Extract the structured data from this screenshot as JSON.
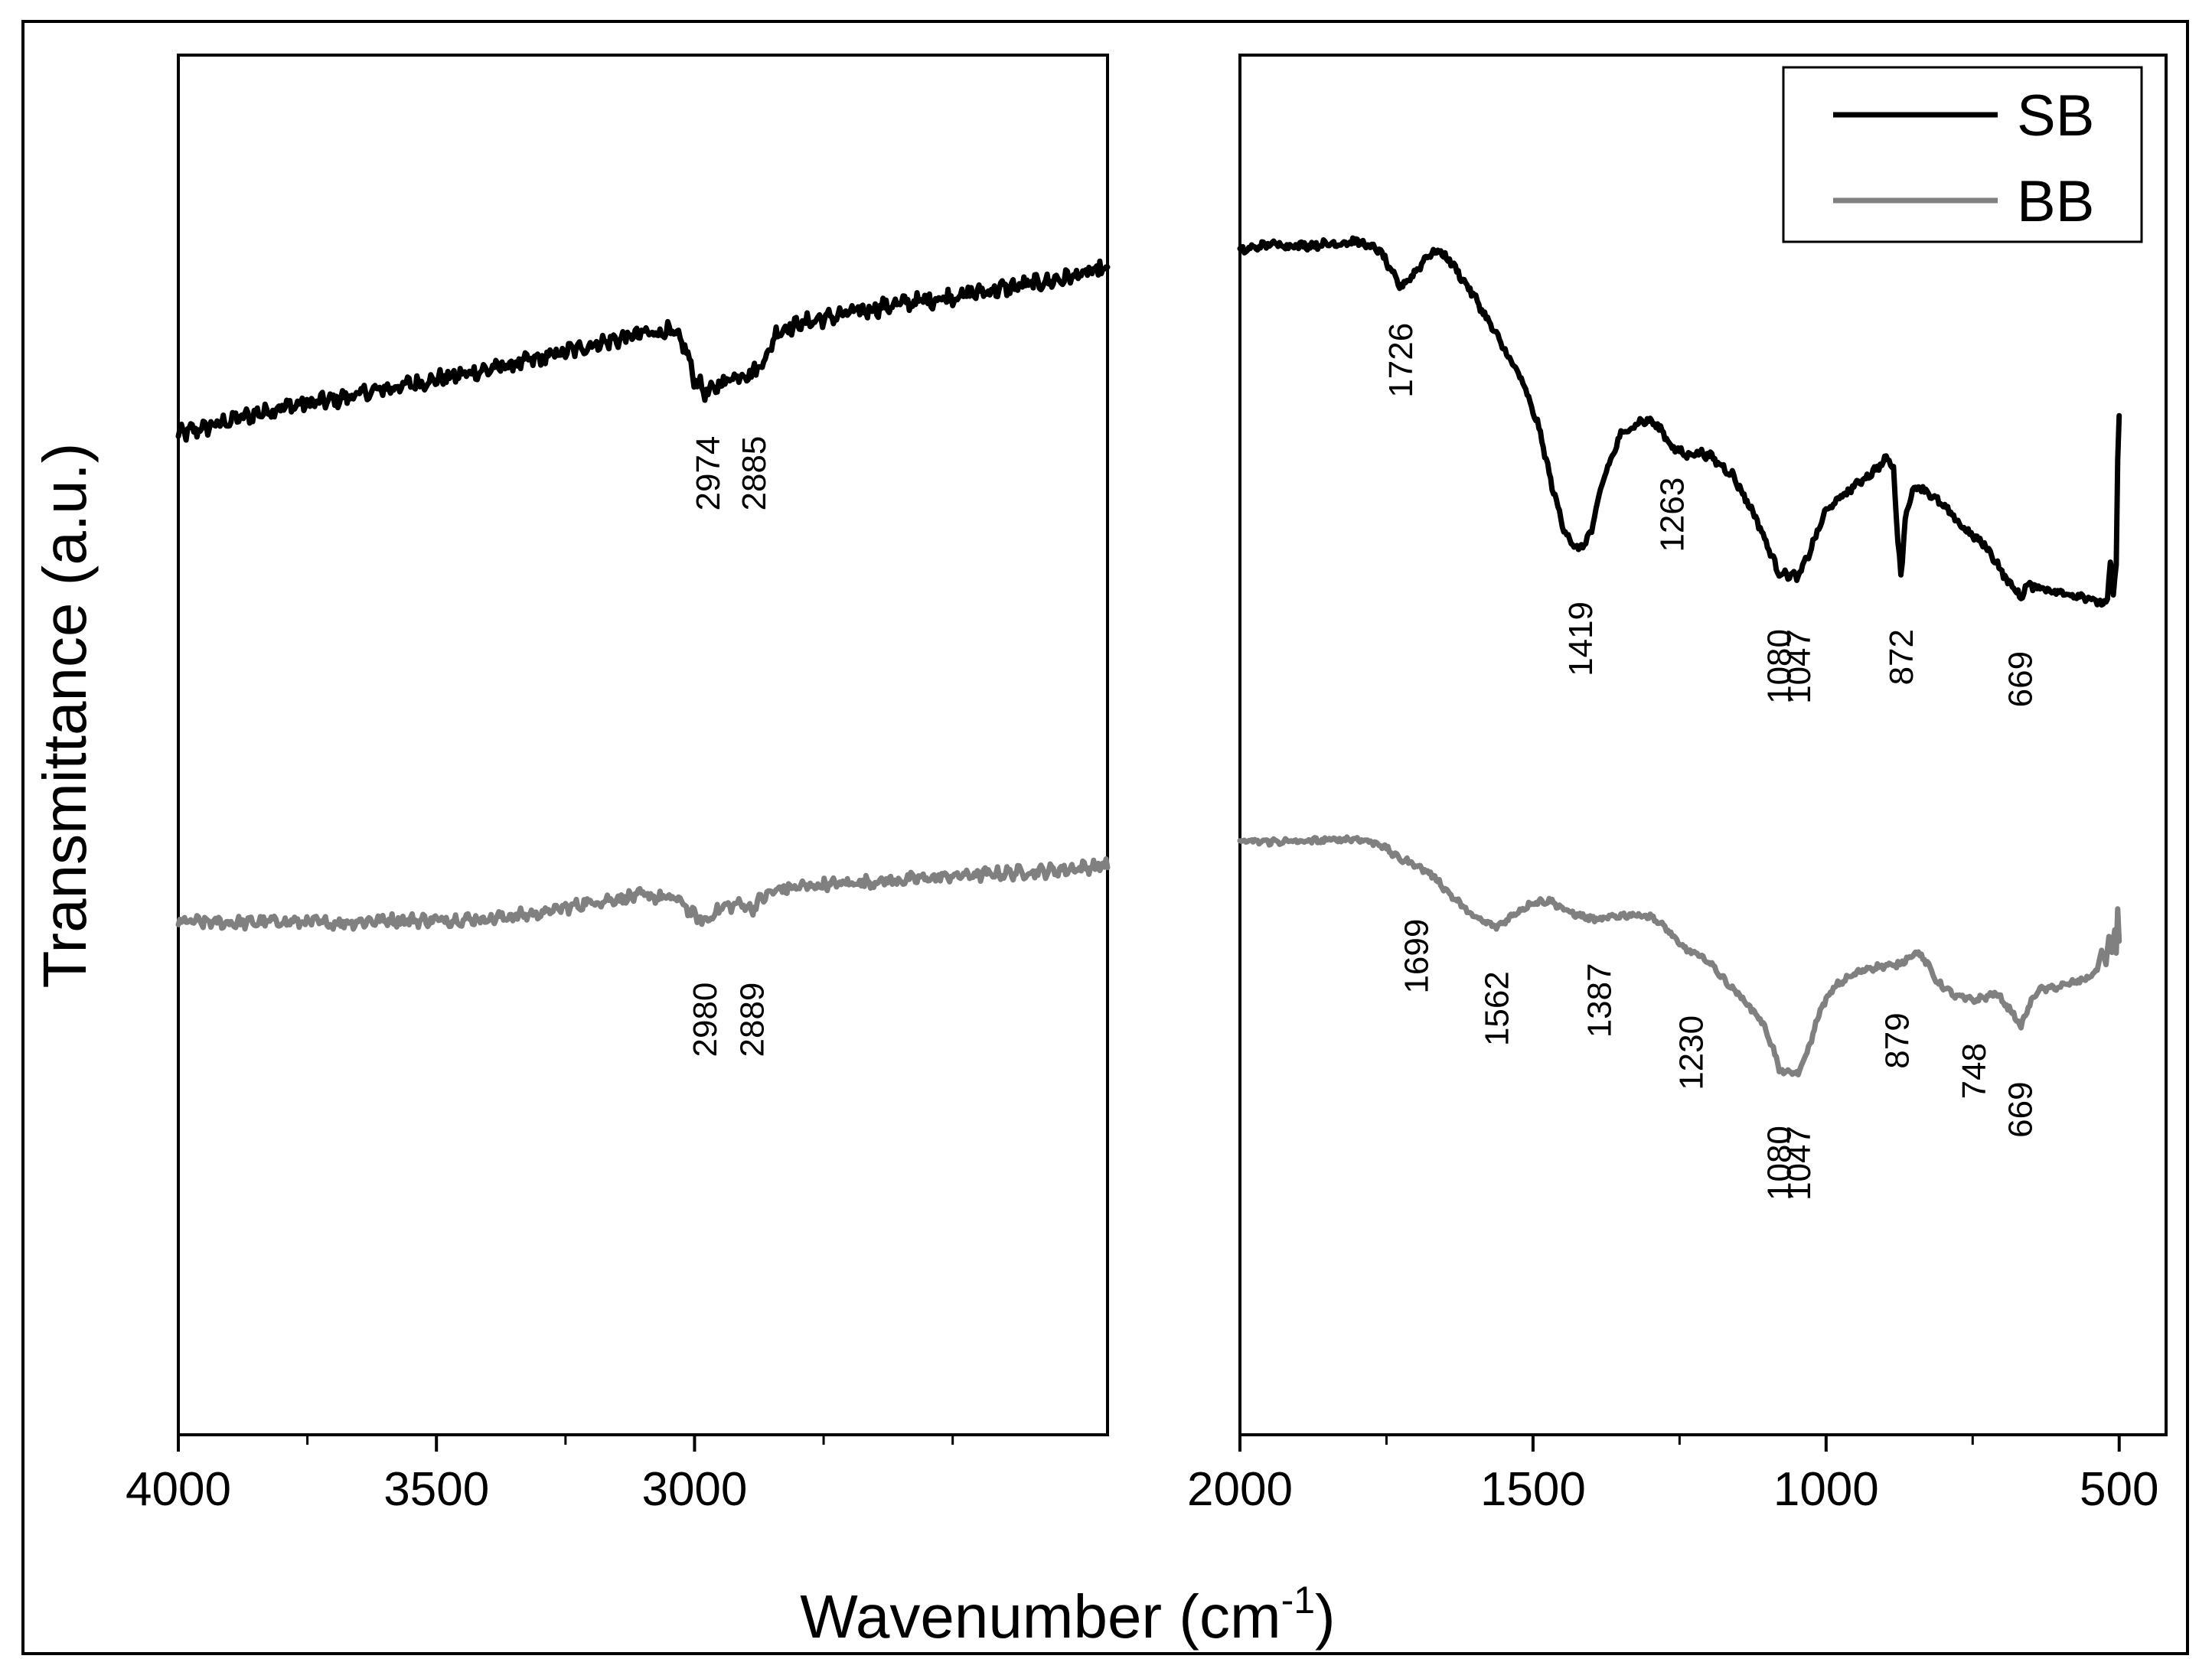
{
  "chart_data": {
    "type": "line",
    "xlabel_main": "Wavenumber (cm",
    "xlabel_sup": "-1",
    "xlabel_close": ")",
    "ylabel": "Transmittance (a.u.)",
    "colors": {
      "SB": "#000000",
      "BB": "#808080"
    },
    "legend": {
      "placement": "top-right",
      "entries": [
        "SB",
        "BB"
      ]
    },
    "panels": [
      {
        "name": "left",
        "xlim": [
          4000,
          2200
        ],
        "ylim": [
          0,
          100
        ],
        "ticks": [
          {
            "value": 4000,
            "label": "4000"
          },
          {
            "value": 3500,
            "label": "3500"
          },
          {
            "value": 3000,
            "label": "3000"
          }
        ],
        "minor_ticks": [
          3750,
          3250,
          2750,
          2500
        ],
        "series": [
          {
            "name": "SB",
            "noise": 4,
            "points": [
              [
                4000,
                72.5
              ],
              [
                3900,
                73.5
              ],
              [
                3800,
                74.5
              ],
              [
                3700,
                75
              ],
              [
                3600,
                75.8
              ],
              [
                3500,
                76.5
              ],
              [
                3400,
                77.2
              ],
              [
                3300,
                78
              ],
              [
                3200,
                79
              ],
              [
                3100,
                79.8
              ],
              [
                3050,
                80
              ],
              [
                3020,
                79
              ],
              [
                3000,
                76.5
              ],
              [
                2974,
                75.4
              ],
              [
                2950,
                76.2
              ],
              [
                2920,
                76.8
              ],
              [
                2885,
                77
              ],
              [
                2860,
                78.2
              ],
              [
                2840,
                80
              ],
              [
                2800,
                80.5
              ],
              [
                2700,
                81.3
              ],
              [
                2600,
                82
              ],
              [
                2500,
                82.5
              ],
              [
                2400,
                83.1
              ],
              [
                2300,
                83.7
              ],
              [
                2200,
                84.5
              ]
            ]
          },
          {
            "name": "BB",
            "noise": 3,
            "points": [
              [
                4000,
                37.2
              ],
              [
                3900,
                37.1
              ],
              [
                3800,
                37.2
              ],
              [
                3700,
                37.1
              ],
              [
                3600,
                37.3
              ],
              [
                3500,
                37.3
              ],
              [
                3400,
                37.4
              ],
              [
                3300,
                37.8
              ],
              [
                3200,
                38.6
              ],
              [
                3100,
                39.1
              ],
              [
                3030,
                38.8
              ],
              [
                3000,
                37.6
              ],
              [
                2980,
                37.2
              ],
              [
                2950,
                38.2
              ],
              [
                2910,
                38.5
              ],
              [
                2889,
                38.1
              ],
              [
                2870,
                38.9
              ],
              [
                2840,
                39.5
              ],
              [
                2800,
                39.7
              ],
              [
                2700,
                40
              ],
              [
                2600,
                40.2
              ],
              [
                2500,
                40.5
              ],
              [
                2400,
                40.7
              ],
              [
                2300,
                40.9
              ],
              [
                2200,
                41.3
              ]
            ]
          }
        ],
        "annotations": [
          {
            "text": "2974",
            "x": 2974,
            "y": 72.4
          },
          {
            "text": "2885",
            "x": 2885,
            "y": 72.4
          },
          {
            "text": "2980",
            "x": 2980,
            "y": 32.8
          },
          {
            "text": "2889",
            "x": 2889,
            "y": 32.8
          }
        ]
      },
      {
        "name": "right",
        "xlim": [
          2000,
          420
        ],
        "ylim": [
          0,
          100
        ],
        "ticks": [
          {
            "value": 2000,
            "label": "2000"
          },
          {
            "value": 1500,
            "label": "1500"
          },
          {
            "value": 1000,
            "label": "1000"
          },
          {
            "value": 500,
            "label": "500"
          }
        ],
        "minor_ticks": [
          1750,
          1250,
          750
        ],
        "series": [
          {
            "name": "SB",
            "noise": 2,
            "points": [
              [
                2000,
                85.8
              ],
              [
                1950,
                86.3
              ],
              [
                1900,
                86.2
              ],
              [
                1850,
                86.3
              ],
              [
                1800,
                86.5
              ],
              [
                1760,
                85.8
              ],
              [
                1745,
                84.5
              ],
              [
                1726,
                83.2
              ],
              [
                1700,
                84.3
              ],
              [
                1680,
                85.5
              ],
              [
                1660,
                85.8
              ],
              [
                1640,
                85
              ],
              [
                1600,
                82.5
              ],
              [
                1560,
                79.5
              ],
              [
                1520,
                76.5
              ],
              [
                1490,
                73
              ],
              [
                1470,
                69.2
              ],
              [
                1450,
                66
              ],
              [
                1430,
                64.3
              ],
              [
                1419,
                64.2
              ],
              [
                1400,
                65.5
              ],
              [
                1380,
                69.3
              ],
              [
                1350,
                72.5
              ],
              [
                1320,
                73.4
              ],
              [
                1300,
                73.5
              ],
              [
                1280,
                72.8
              ],
              [
                1263,
                71.6
              ],
              [
                1240,
                71
              ],
              [
                1220,
                71.2
              ],
              [
                1200,
                71
              ],
              [
                1160,
                69.6
              ],
              [
                1120,
                66.5
              ],
              [
                1090,
                63.4
              ],
              [
                1080,
                62.5
              ],
              [
                1060,
                62.3
              ],
              [
                1047,
                62.2
              ],
              [
                1030,
                63.8
              ],
              [
                1000,
                67
              ],
              [
                960,
                68.5
              ],
              [
                920,
                69.8
              ],
              [
                895,
                70.8
              ],
              [
                885,
                70
              ],
              [
                878,
                65
              ],
              [
                872,
                62.3
              ],
              [
                866,
                66
              ],
              [
                855,
                68.3
              ],
              [
                840,
                68.8
              ],
              [
                800,
                67.3
              ],
              [
                760,
                65.5
              ],
              [
                730,
                64.5
              ],
              [
                710,
                63.3
              ],
              [
                690,
                61.8
              ],
              [
                675,
                61.2
              ],
              [
                669,
                60.5
              ],
              [
                660,
                61.5
              ],
              [
                640,
                61.5
              ],
              [
                600,
                61
              ],
              [
                560,
                60.8
              ],
              [
                530,
                60.2
              ],
              [
                520,
                60.5
              ],
              [
                514,
                63.5
              ],
              [
                510,
                61
              ],
              [
                505,
                63
              ],
              [
                502,
                72.5
              ],
              [
                500,
                74
              ]
            ]
          },
          {
            "name": "BB",
            "noise": 1.5,
            "points": [
              [
                2000,
                43
              ],
              [
                1950,
                43
              ],
              [
                1900,
                43
              ],
              [
                1850,
                43.1
              ],
              [
                1800,
                43.2
              ],
              [
                1760,
                42.8
              ],
              [
                1730,
                41.8
              ],
              [
                1699,
                41.3
              ],
              [
                1670,
                40.5
              ],
              [
                1640,
                39.1
              ],
              [
                1600,
                37.5
              ],
              [
                1562,
                36.8
              ],
              [
                1530,
                37.8
              ],
              [
                1500,
                38.6
              ],
              [
                1470,
                38.7
              ],
              [
                1440,
                37.9
              ],
              [
                1410,
                37.5
              ],
              [
                1387,
                37.3
              ],
              [
                1360,
                37.6
              ],
              [
                1330,
                37.7
              ],
              [
                1300,
                37.6
              ],
              [
                1270,
                36.6
              ],
              [
                1250,
                35.5
              ],
              [
                1230,
                35
              ],
              [
                1200,
                34.3
              ],
              [
                1170,
                32.8
              ],
              [
                1140,
                31.5
              ],
              [
                1110,
                30
              ],
              [
                1090,
                28
              ],
              [
                1080,
                26.4
              ],
              [
                1060,
                26.2
              ],
              [
                1047,
                26.2
              ],
              [
                1030,
                28
              ],
              [
                1010,
                30.8
              ],
              [
                985,
                32.5
              ],
              [
                960,
                33.2
              ],
              [
                930,
                33.8
              ],
              [
                900,
                34
              ],
              [
                879,
                34
              ],
              [
                860,
                34.6
              ],
              [
                845,
                35
              ],
              [
                830,
                34.3
              ],
              [
                810,
                32.8
              ],
              [
                780,
                31.8
              ],
              [
                760,
                31.6
              ],
              [
                748,
                31.5
              ],
              [
                730,
                31.7
              ],
              [
                710,
                32
              ],
              [
                690,
                31
              ],
              [
                675,
                30.2
              ],
              [
                669,
                29.4
              ],
              [
                660,
                30.5
              ],
              [
                640,
                32.2
              ],
              [
                600,
                32.5
              ],
              [
                560,
                33
              ],
              [
                540,
                33.5
              ],
              [
                530,
                35
              ],
              [
                522,
                34
              ],
              [
                518,
                36.2
              ],
              [
                512,
                34.8
              ],
              [
                508,
                37
              ],
              [
                504,
                34
              ],
              [
                502,
                39.6
              ],
              [
                500,
                36
              ]
            ]
          }
        ],
        "annotations": [
          {
            "text": "1726",
            "x": 1726,
            "y": 80.6
          },
          {
            "text": "1419",
            "x": 1419,
            "y": 60.4
          },
          {
            "text": "1263",
            "x": 1263,
            "y": 69.4
          },
          {
            "text": "1080",
            "x": 1080,
            "y": 58.4
          },
          {
            "text": "1047",
            "x": 1047,
            "y": 58.4
          },
          {
            "text": "872",
            "x": 872,
            "y": 58.4
          },
          {
            "text": "669",
            "x": 669,
            "y": 56.8
          },
          {
            "text": "1699",
            "x": 1699,
            "y": 37.4
          },
          {
            "text": "1562",
            "x": 1562,
            "y": 33.6
          },
          {
            "text": "1387",
            "x": 1387,
            "y": 34.2
          },
          {
            "text": "1230",
            "x": 1230,
            "y": 30.4
          },
          {
            "text": "1080",
            "x": 1080,
            "y": 22.4
          },
          {
            "text": "1047",
            "x": 1047,
            "y": 22.4
          },
          {
            "text": "879",
            "x": 879,
            "y": 30.6
          },
          {
            "text": "748",
            "x": 748,
            "y": 28.4
          },
          {
            "text": "669",
            "x": 669,
            "y": 25.6
          }
        ]
      }
    ]
  }
}
